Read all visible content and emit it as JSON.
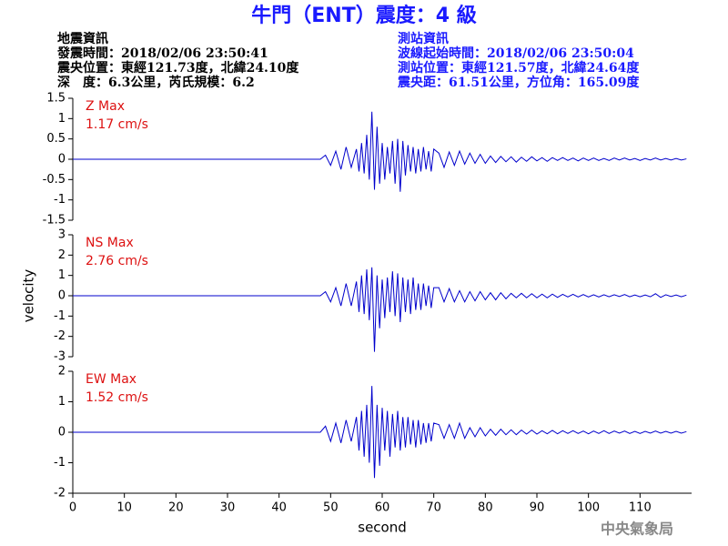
{
  "header": {
    "title": "牛門（ENT）震度：4 級",
    "left_info": [
      "地震資訊",
      "發震時間：2018/02/06 23:50:41",
      "震央位置：東經121.73度，北緯24.10度",
      "深　度：6.3公里，芮氏規模：6.2"
    ],
    "right_info": [
      "測站資訊",
      "波線起始時間：2018/02/06 23:50:04",
      "測站位置：東經121.57度，北緯24.64度",
      "震央距：61.51公里，方位角：165.09度"
    ],
    "credit": "中央氣象局"
  },
  "chart_data": [
    {
      "type": "line",
      "label": "Z Max",
      "max_label": "1.17 cm/s",
      "color": "#0000cc",
      "label_color": "#dd1111",
      "x": [
        0,
        48,
        49,
        50,
        51,
        52,
        53,
        54,
        55,
        55.5,
        56,
        56.5,
        57,
        57.5,
        58,
        58.5,
        59,
        59.5,
        60,
        60.5,
        61,
        61.5,
        62,
        62.5,
        63,
        63.5,
        64,
        64.5,
        65,
        65.5,
        66,
        66.5,
        67,
        67.5,
        68,
        68.5,
        69,
        69.5,
        70,
        71,
        72,
        73,
        74,
        75,
        76,
        77,
        78,
        79,
        80,
        81,
        82,
        83,
        84,
        85,
        86,
        87,
        88,
        89,
        90,
        91,
        92,
        93,
        94,
        95,
        96,
        97,
        98,
        99,
        100,
        101,
        102,
        103,
        104,
        105,
        106,
        107,
        108,
        109,
        110,
        111,
        112,
        113,
        114,
        115,
        116,
        117,
        118,
        119
      ],
      "values": [
        0,
        0,
        0.1,
        -0.15,
        0.2,
        -0.25,
        0.3,
        -0.2,
        0.25,
        -0.3,
        0.4,
        -0.35,
        0.6,
        -0.5,
        1.17,
        -0.75,
        0.8,
        -0.6,
        0.4,
        -0.5,
        0.3,
        -0.35,
        0.45,
        -0.6,
        0.5,
        -0.8,
        0.45,
        -0.4,
        0.35,
        -0.3,
        0.3,
        -0.35,
        0.25,
        -0.3,
        0.3,
        -0.25,
        0.2,
        -0.3,
        0.25,
        0.15,
        -0.2,
        0.18,
        -0.15,
        0.2,
        -0.12,
        0.15,
        -0.1,
        0.12,
        -0.1,
        0.08,
        -0.08,
        0.07,
        -0.06,
        0.06,
        -0.07,
        0.05,
        -0.05,
        0.06,
        -0.04,
        0.04,
        -0.05,
        0.04,
        -0.03,
        0.04,
        -0.03,
        0.03,
        -0.04,
        0.03,
        -0.03,
        0.03,
        -0.03,
        0.02,
        -0.03,
        0.03,
        -0.02,
        0.03,
        -0.02,
        0.02,
        -0.03,
        0.02,
        -0.02,
        0.03,
        -0.02,
        0.02,
        -0.02,
        0.02,
        -0.02,
        0.01
      ],
      "xlim": [
        0,
        120
      ],
      "ylim": [
        -1.5,
        1.5
      ],
      "yticks": [
        -1.5,
        -1,
        -0.5,
        0,
        0.5,
        1,
        1.5
      ]
    },
    {
      "type": "line",
      "label": "NS Max",
      "max_label": "2.76 cm/s",
      "color": "#0000cc",
      "label_color": "#dd1111",
      "ylabel": "velocity",
      "x": [
        0,
        48,
        49,
        50,
        51,
        52,
        53,
        54,
        55,
        55.5,
        56,
        56.5,
        57,
        57.5,
        58,
        58.5,
        59,
        59.5,
        60,
        60.5,
        61,
        61.5,
        62,
        62.5,
        63,
        63.5,
        64,
        64.5,
        65,
        65.5,
        66,
        66.5,
        67,
        67.5,
        68,
        68.5,
        69,
        69.5,
        70,
        71,
        72,
        73,
        74,
        75,
        76,
        77,
        78,
        79,
        80,
        81,
        82,
        83,
        84,
        85,
        86,
        87,
        88,
        89,
        90,
        91,
        92,
        93,
        94,
        95,
        96,
        97,
        98,
        99,
        100,
        101,
        102,
        103,
        104,
        105,
        106,
        107,
        108,
        109,
        110,
        111,
        112,
        113,
        114,
        115,
        116,
        117,
        118,
        119
      ],
      "values": [
        0,
        0,
        0.2,
        -0.3,
        0.4,
        -0.5,
        0.6,
        -0.5,
        0.7,
        -0.8,
        1.0,
        -0.9,
        1.3,
        -1.2,
        1.4,
        -2.76,
        1.0,
        -1.6,
        0.8,
        -1.1,
        0.9,
        -0.8,
        1.2,
        -1.0,
        1.1,
        -1.3,
        0.9,
        -0.8,
        0.8,
        -0.9,
        0.9,
        -0.7,
        0.6,
        -0.7,
        0.6,
        -0.5,
        0.5,
        -0.6,
        0.4,
        0.4,
        -0.3,
        0.35,
        -0.3,
        0.25,
        -0.3,
        0.2,
        -0.25,
        0.2,
        -0.2,
        0.15,
        -0.2,
        0.15,
        -0.15,
        0.12,
        -0.1,
        0.12,
        -0.1,
        0.1,
        -0.1,
        0.08,
        -0.1,
        0.08,
        -0.08,
        0.07,
        -0.06,
        0.07,
        -0.06,
        0.06,
        -0.06,
        0.05,
        -0.06,
        0.05,
        -0.05,
        0.05,
        -0.04,
        0.06,
        -0.05,
        0.04,
        -0.05,
        0.04,
        -0.05,
        0.1,
        -0.08,
        0.05,
        -0.04,
        0.04,
        -0.05,
        0.03
      ],
      "xlim": [
        0,
        120
      ],
      "ylim": [
        -3,
        3
      ],
      "yticks": [
        -3,
        -2,
        -1,
        0,
        1,
        2,
        3
      ]
    },
    {
      "type": "line",
      "label": "EW Max",
      "max_label": "1.52 cm/s",
      "color": "#0000cc",
      "label_color": "#dd1111",
      "xlabel": "second",
      "x": [
        0,
        48,
        49,
        50,
        51,
        52,
        53,
        54,
        55,
        55.5,
        56,
        56.5,
        57,
        57.5,
        58,
        58.5,
        59,
        59.5,
        60,
        60.5,
        61,
        61.5,
        62,
        62.5,
        63,
        63.5,
        64,
        64.5,
        65,
        65.5,
        66,
        66.5,
        67,
        67.5,
        68,
        68.5,
        69,
        69.5,
        70,
        71,
        72,
        73,
        74,
        75,
        76,
        77,
        78,
        79,
        80,
        81,
        82,
        83,
        84,
        85,
        86,
        87,
        88,
        89,
        90,
        91,
        92,
        93,
        94,
        95,
        96,
        97,
        98,
        99,
        100,
        101,
        102,
        103,
        104,
        105,
        106,
        107,
        108,
        109,
        110,
        111,
        112,
        113,
        114,
        115,
        116,
        117,
        118,
        119
      ],
      "values": [
        0,
        0,
        0.2,
        -0.3,
        0.3,
        -0.35,
        0.4,
        -0.3,
        0.5,
        -0.6,
        0.7,
        -0.8,
        0.9,
        -1.0,
        1.52,
        -1.5,
        0.9,
        -1.1,
        0.8,
        -0.6,
        0.7,
        -0.8,
        0.6,
        -0.5,
        0.7,
        -0.6,
        0.5,
        -0.5,
        0.5,
        -0.4,
        0.4,
        -0.5,
        0.4,
        -0.4,
        0.3,
        -0.35,
        0.3,
        -0.3,
        0.3,
        0.25,
        -0.2,
        0.25,
        -0.2,
        0.3,
        -0.2,
        0.15,
        -0.15,
        0.15,
        -0.12,
        0.1,
        -0.1,
        0.1,
        -0.08,
        0.08,
        -0.08,
        0.07,
        -0.06,
        0.07,
        -0.06,
        0.05,
        -0.05,
        0.06,
        -0.05,
        0.05,
        -0.04,
        0.05,
        -0.04,
        0.04,
        -0.05,
        0.04,
        -0.04,
        0.05,
        -0.04,
        0.04,
        -0.03,
        0.04,
        -0.04,
        0.03,
        -0.04,
        0.03,
        -0.03,
        0.04,
        -0.03,
        0.03,
        -0.03,
        0.03,
        -0.03,
        0.02
      ],
      "xlim": [
        0,
        120
      ],
      "ylim": [
        -2,
        2
      ],
      "yticks": [
        -2,
        -1,
        0,
        1,
        2
      ],
      "xticks": [
        0,
        10,
        20,
        30,
        40,
        50,
        60,
        70,
        80,
        90,
        100,
        110
      ]
    }
  ]
}
